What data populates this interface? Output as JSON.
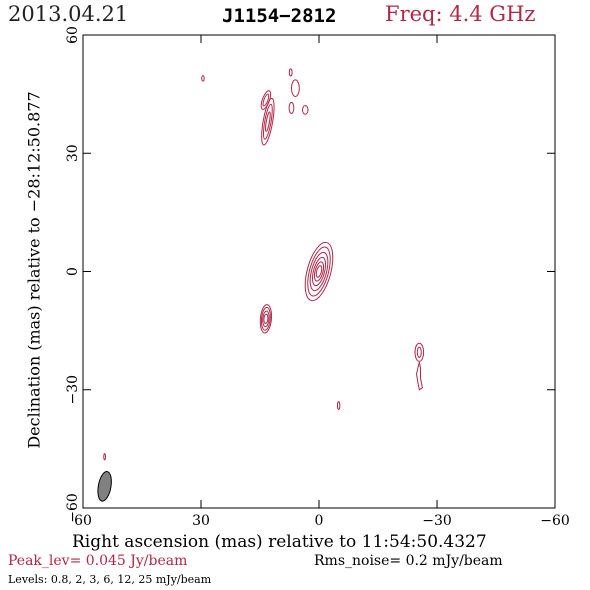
{
  "header": {
    "date": "2013.04.21",
    "source": "J1154−2812",
    "freq_label": "Freq: 4.4 GHz",
    "freq_color": "#b02848"
  },
  "chart_data": {
    "type": "contour",
    "xlabel": "Right ascension (mas) relative to 11:54:50.4327",
    "ylabel": "Declination (mas) relative to −28:12:50.877",
    "xlim": [
      60,
      -60
    ],
    "ylim": [
      -60,
      60
    ],
    "x_ticks": [
      60,
      30,
      0,
      -30,
      -60
    ],
    "x_tick_labels": [
      "60",
      "30",
      "0",
      "−30",
      "−60"
    ],
    "y_ticks": [
      -60,
      -30,
      0,
      30,
      60
    ],
    "y_tick_labels": [
      "−60",
      "−30",
      "0",
      "30",
      "60"
    ],
    "contour_color": "#b02848",
    "components": [
      {
        "x": 0,
        "y": 0,
        "sizes": [
          [
            0.6,
            1.5
          ],
          [
            1.0,
            2.5
          ],
          [
            1.4,
            3.7
          ],
          [
            1.9,
            5.0
          ],
          [
            2.4,
            6.4
          ],
          [
            3.0,
            7.6
          ]
        ],
        "angle": 15
      },
      {
        "x": 13.5,
        "y": -12,
        "sizes": [
          [
            0.5,
            1.2
          ],
          [
            0.8,
            2.0
          ],
          [
            1.1,
            2.9
          ],
          [
            1.4,
            3.6
          ]
        ],
        "angle": 5
      },
      {
        "x": 13,
        "y": 38,
        "sizes": [
          [
            0.4,
            2.5
          ],
          [
            0.8,
            4.5
          ],
          [
            1.2,
            6.0
          ]
        ],
        "angle": 10
      },
      {
        "x": 13.5,
        "y": 43.5,
        "sizes": [
          [
            0.5,
            1.6
          ],
          [
            0.9,
            2.5
          ]
        ],
        "angle": 20
      },
      {
        "x": 6,
        "y": 46.5,
        "sizes": [
          [
            1.0,
            2.1
          ]
        ],
        "angle": 0
      },
      {
        "x": 7,
        "y": 41.5,
        "sizes": [
          [
            0.6,
            1.4
          ]
        ],
        "angle": 0
      },
      {
        "x": 3.5,
        "y": 41,
        "sizes": [
          [
            0.7,
            1.1
          ]
        ],
        "angle": 0
      },
      {
        "x": 7.2,
        "y": 50.5,
        "sizes": [
          [
            0.35,
            0.9
          ]
        ],
        "angle": 0
      },
      {
        "x": 29.5,
        "y": 49,
        "sizes": [
          [
            0.3,
            0.7
          ]
        ],
        "angle": 0
      },
      {
        "x": -25.5,
        "y": -20.5,
        "sizes": [
          [
            0.5,
            1.3
          ],
          [
            1.1,
            2.3
          ]
        ],
        "angle": 0
      },
      {
        "x": -5,
        "y": -34,
        "sizes": [
          [
            0.3,
            1.0
          ]
        ],
        "angle": 0
      },
      {
        "x": 54.5,
        "y": -47,
        "sizes": [
          [
            0.22,
            0.8
          ]
        ],
        "angle": 0
      }
    ],
    "paths": [
      [
        [
          -25.5,
          -23
        ],
        [
          -24.8,
          -26
        ],
        [
          -25.2,
          -28.5
        ],
        [
          -25.5,
          -30
        ],
        [
          -26.3,
          -29.5
        ],
        [
          -25.8,
          -27
        ],
        [
          -25.8,
          -24.5
        ]
      ]
    ],
    "beam": {
      "x": 54.5,
      "y": -54.5,
      "bmaj": 7.6,
      "bmin": 3.2,
      "angle": 10,
      "fill": "#808080"
    }
  },
  "footer": {
    "peak": "Peak_lev=  0.045 Jy/beam",
    "peak_color": "#b02848",
    "rms": "Rms_noise=  0.2 mJy/beam",
    "levels": "Levels: 0.8,   2,   3,   6,  12,  25 mJy/beam"
  }
}
